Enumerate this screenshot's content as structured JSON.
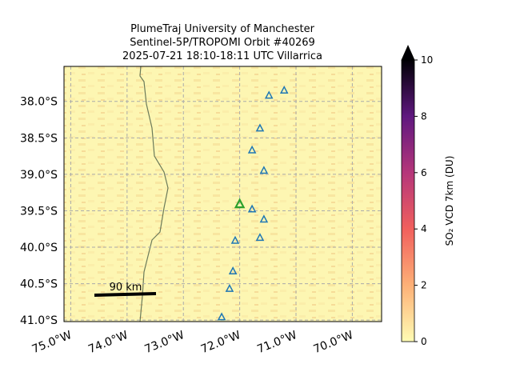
{
  "chart_data": {
    "type": "map",
    "title": [
      "PlumeTraj    University of Manchester",
      "Sentinel-5P/TROPOMI Orbit #40269",
      "2025-07-21    18:10-18:11 UTC   Villarrica"
    ],
    "xlim": [
      -75.12,
      -69.48
    ],
    "ylim": [
      -41.02,
      -37.52
    ],
    "xticks": [
      {
        "value": -75,
        "label": "75.0°W"
      },
      {
        "value": -74,
        "label": "74.0°W"
      },
      {
        "value": -73,
        "label": "73.0°W"
      },
      {
        "value": -72,
        "label": "72.0°W"
      },
      {
        "value": -71,
        "label": "71.0°W"
      },
      {
        "value": -70,
        "label": "70.0°W"
      }
    ],
    "yticks": [
      {
        "value": -38,
        "label": "38.0°S"
      },
      {
        "value": -38.5,
        "label": "38.5°S"
      },
      {
        "value": -39,
        "label": "39.0°S"
      },
      {
        "value": -39.5,
        "label": "39.5°S"
      },
      {
        "value": -40,
        "label": "40.0°S"
      },
      {
        "value": -40.5,
        "label": "40.5°S"
      },
      {
        "value": -41,
        "label": "41.0°S"
      }
    ],
    "grid": true,
    "volcanoes": {
      "color": "#1f77b4",
      "lon": [
        -71.48,
        -71.21,
        -71.64,
        -71.78,
        -71.57,
        -71.78,
        -71.57,
        -71.64,
        -72.08,
        -72.12,
        -72.18,
        -72.32
      ],
      "lat": [
        -37.92,
        -37.85,
        -38.37,
        -38.67,
        -38.95,
        -39.48,
        -39.62,
        -39.87,
        -39.91,
        -40.33,
        -40.57,
        -40.96
      ]
    },
    "target": {
      "color": "#2ca02c",
      "lon": -72.0,
      "lat": -39.41
    },
    "scale_bar": {
      "label": "90 km"
    },
    "colorbar": {
      "label": "SO₂ VCD 7km (DU)",
      "clim": [
        0,
        10
      ],
      "ticks": [
        0,
        2,
        4,
        6,
        8,
        10
      ],
      "colors": [
        "#fffcb4",
        "#fdb077",
        "#f1605d",
        "#b5367a",
        "#5f187f",
        "#000004"
      ]
    }
  }
}
